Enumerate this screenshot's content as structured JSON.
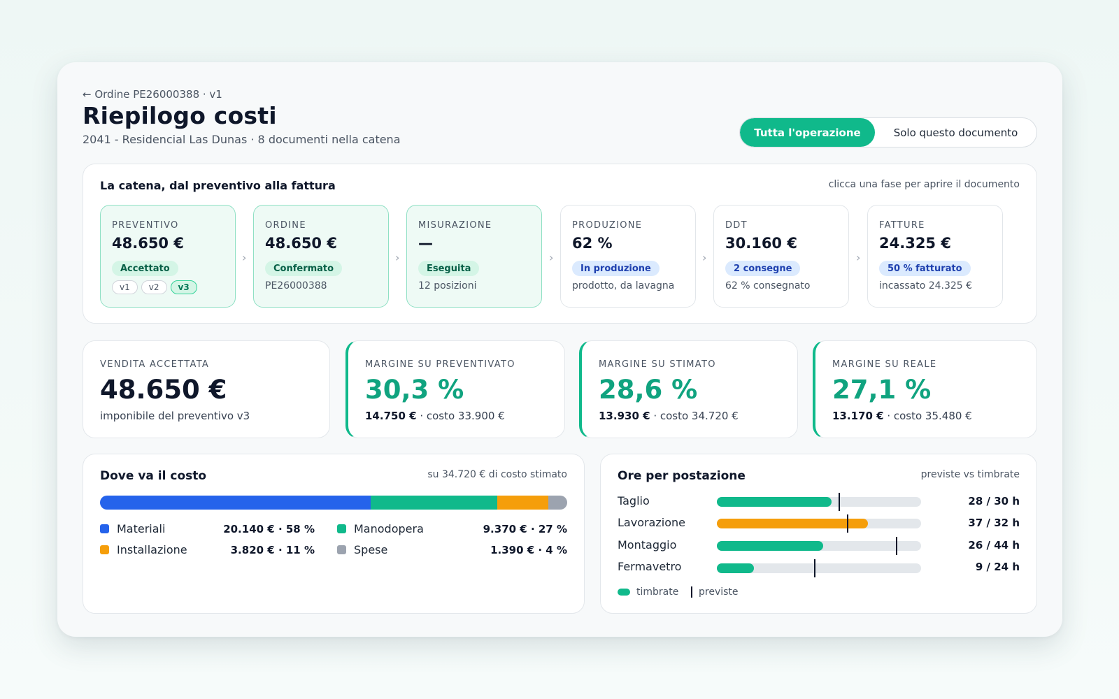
{
  "header": {
    "back": "← Ordine PE26000388 · v1",
    "title": "Riepilogo costi",
    "subtitle": "2041 - Residencial Las Dunas · 8 documenti nella catena",
    "toggle_active": "Tutta l'operazione",
    "toggle_inactive": "Solo questo documento"
  },
  "chain": {
    "title": "La catena, dal preventivo alla fattura",
    "hint": "clicca una fase per aprire il documento",
    "chevron": "›",
    "phases": [
      {
        "label": "PREVENTIVO",
        "value": "48.650 €",
        "badge": "Accettato",
        "versions": [
          "v1",
          "v2",
          "v3"
        ],
        "selected_version": "v3"
      },
      {
        "label": "ORDINE",
        "value": "48.650 €",
        "badge": "Confermato",
        "note": "PE26000388"
      },
      {
        "label": "MISURAZIONE",
        "value": "—",
        "badge": "Eseguita",
        "note": "12 posizioni"
      },
      {
        "label": "PRODUZIONE",
        "value": "62 %",
        "badge": "In produzione",
        "note": "prodotto, da lavagna"
      },
      {
        "label": "DDT",
        "value": "30.160 €",
        "badge": "2 consegne",
        "note": "62 % consegnato"
      },
      {
        "label": "FATTURE",
        "value": "24.325 €",
        "badge": "50 % fatturato",
        "note": "incassato 24.325 €"
      }
    ]
  },
  "kpis": [
    {
      "label": "VENDITA ACCETTATA",
      "value": "48.650 €",
      "sub": "imponibile del preventivo v3"
    },
    {
      "label": "MARGINE SU PREVENTIVATO",
      "value": "30,3 %",
      "amount": "14.750 €",
      "cost": " · costo 33.900 €"
    },
    {
      "label": "MARGINE SU STIMATO",
      "value": "28,6 %",
      "amount": "13.930 €",
      "cost": " · costo 34.720 €"
    },
    {
      "label": "MARGINE SU REALE",
      "value": "27,1 %",
      "amount": "13.170 €",
      "cost": " · costo 35.480 €"
    }
  ],
  "costs": {
    "title": "Dove va il costo",
    "hint": "su 34.720 € di costo stimato",
    "items": [
      {
        "name": "Materiali",
        "value": "20.140 € · 58 %",
        "share": 58,
        "color": "#2563eb"
      },
      {
        "name": "Manodopera",
        "value": "9.370 € · 27 %",
        "share": 27,
        "color": "#10b98b"
      },
      {
        "name": "Installazione",
        "value": "3.820 € · 11 %",
        "share": 11,
        "color": "#f59e0b"
      },
      {
        "name": "Spese",
        "value": "1.390 € · 4 %",
        "share": 4,
        "color": "#9ca3af"
      }
    ]
  },
  "hours": {
    "title": "Ore per postazione",
    "hint": "previste vs timbrate",
    "rows": [
      {
        "name": "Taglio",
        "logged": 28,
        "planned": 30,
        "value": "28 / 30 h",
        "color": "#10b98b"
      },
      {
        "name": "Lavorazione",
        "logged": 37,
        "planned": 32,
        "value": "37 / 32 h",
        "color": "#f59e0b"
      },
      {
        "name": "Montaggio",
        "logged": 26,
        "planned": 44,
        "value": "26 / 44 h",
        "color": "#10b98b"
      },
      {
        "name": "Fermavetro",
        "logged": 9,
        "planned": 24,
        "value": "9 / 24 h",
        "color": "#10b98b"
      }
    ],
    "legend_logged": "timbrate",
    "legend_planned": "previste"
  }
}
